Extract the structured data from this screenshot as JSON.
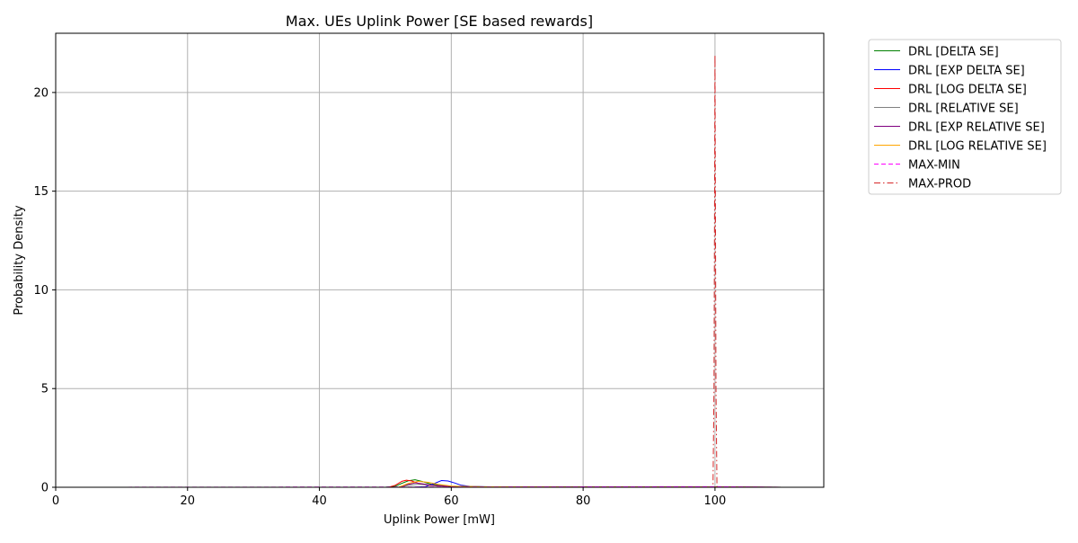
{
  "chart_data": {
    "type": "line",
    "title": "Max. UEs Uplink Power [SE based rewards]",
    "xlabel": "Uplink Power [mW]",
    "ylabel": "Probability Density",
    "xlim": [
      0,
      116.5
    ],
    "ylim": [
      0,
      23
    ],
    "xticks": [
      0,
      20,
      40,
      60,
      80,
      100
    ],
    "yticks": [
      0,
      5,
      10,
      15,
      20
    ],
    "grid": true,
    "legend_position": "outside-right-top",
    "series": [
      {
        "name": "DRL [DELTA SE]",
        "color": "#008000",
        "style": "solid",
        "x": [
          0,
          50,
          51.5,
          52.5,
          53.5,
          54.5,
          55.5,
          57,
          60,
          65,
          70,
          80,
          90,
          100,
          110.5
        ],
        "y": [
          0,
          0,
          0.05,
          0.2,
          0.33,
          0.38,
          0.3,
          0.15,
          0.05,
          0.02,
          0.01,
          0.01,
          0.01,
          0.01,
          0
        ]
      },
      {
        "name": "DRL [EXP DELTA SE]",
        "color": "#0000ff",
        "style": "solid",
        "x": [
          0,
          54,
          56,
          57.5,
          58.5,
          59.5,
          60.5,
          61.5,
          63,
          66,
          70,
          80,
          90,
          100,
          110.5
        ],
        "y": [
          0,
          0,
          0.02,
          0.2,
          0.34,
          0.32,
          0.22,
          0.1,
          0.04,
          0.02,
          0.01,
          0.01,
          0.01,
          0.01,
          0
        ]
      },
      {
        "name": "DRL [LOG DELTA SE]",
        "color": "#ff0000",
        "style": "solid",
        "x": [
          0,
          50.5,
          51.5,
          52.5,
          53.2,
          54,
          55,
          56.5,
          59,
          63,
          70,
          80,
          90,
          100,
          110.5
        ],
        "y": [
          0,
          0,
          0.1,
          0.3,
          0.36,
          0.32,
          0.2,
          0.1,
          0.05,
          0.02,
          0.01,
          0.01,
          0.01,
          0.01,
          0
        ]
      },
      {
        "name": "DRL [RELATIVE SE]",
        "color": "#808080",
        "style": "solid",
        "x": [
          0,
          52,
          53.5,
          55,
          57,
          60,
          65,
          80,
          100,
          110.5
        ],
        "y": [
          0,
          0,
          0.1,
          0.15,
          0.1,
          0.05,
          0.02,
          0.01,
          0.01,
          0
        ]
      },
      {
        "name": "DRL [EXP RELATIVE SE]",
        "color": "#800080",
        "style": "solid",
        "x": [
          0,
          52,
          53.5,
          54.5,
          55.5,
          57,
          60,
          65,
          80,
          100,
          110.5
        ],
        "y": [
          0,
          0,
          0.15,
          0.22,
          0.18,
          0.1,
          0.04,
          0.02,
          0.01,
          0.01,
          0
        ]
      },
      {
        "name": "DRL [LOG RELATIVE SE]",
        "color": "#ffa500",
        "style": "solid",
        "x": [
          0,
          52,
          53.5,
          55,
          56.5,
          58,
          60,
          65,
          80,
          100,
          110.5
        ],
        "y": [
          0,
          0,
          0.2,
          0.3,
          0.25,
          0.15,
          0.06,
          0.02,
          0.01,
          0.01,
          0
        ]
      },
      {
        "name": "MAX-MIN",
        "color": "#ff00ff",
        "style": "dashed",
        "x": [
          0,
          40,
          60,
          80,
          100,
          110
        ],
        "y": [
          0,
          0.01,
          0.01,
          0.02,
          0.03,
          0
        ]
      },
      {
        "name": "MAX-PROD",
        "color": "#d62728",
        "style": "dashdot",
        "x": [
          0,
          99.7,
          99.85,
          100,
          100.15,
          100.3,
          110
        ],
        "y": [
          0,
          0,
          5,
          21.9,
          5,
          0,
          0
        ]
      }
    ]
  }
}
